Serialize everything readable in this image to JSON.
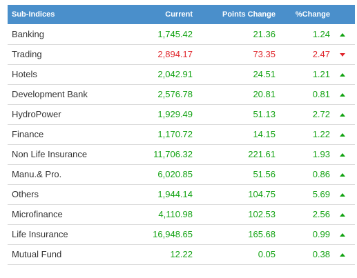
{
  "table": {
    "headers": {
      "name": "Sub-Indices",
      "current": "Current",
      "points_change": "Points Change",
      "pct_change": "%Change"
    },
    "rows": [
      {
        "name": "Banking",
        "current": "1,745.42",
        "points_change": "21.36",
        "pct_change": "1.24",
        "direction": "up"
      },
      {
        "name": "Trading",
        "current": "2,894.17",
        "points_change": "73.35",
        "pct_change": "2.47",
        "direction": "down"
      },
      {
        "name": "Hotels",
        "current": "2,042.91",
        "points_change": "24.51",
        "pct_change": "1.21",
        "direction": "up"
      },
      {
        "name": "Development Bank",
        "current": "2,576.78",
        "points_change": "20.81",
        "pct_change": "0.81",
        "direction": "up"
      },
      {
        "name": "HydroPower",
        "current": "1,929.49",
        "points_change": "51.13",
        "pct_change": "2.72",
        "direction": "up"
      },
      {
        "name": "Finance",
        "current": "1,170.72",
        "points_change": "14.15",
        "pct_change": "1.22",
        "direction": "up"
      },
      {
        "name": "Non Life Insurance",
        "current": "11,706.32",
        "points_change": "221.61",
        "pct_change": "1.93",
        "direction": "up"
      },
      {
        "name": "Manu.& Pro.",
        "current": "6,020.85",
        "points_change": "51.56",
        "pct_change": "0.86",
        "direction": "up"
      },
      {
        "name": "Others",
        "current": "1,944.14",
        "points_change": "104.75",
        "pct_change": "5.69",
        "direction": "up"
      },
      {
        "name": "Microfinance",
        "current": "4,110.98",
        "points_change": "102.53",
        "pct_change": "2.56",
        "direction": "up"
      },
      {
        "name": "Life Insurance",
        "current": "16,948.65",
        "points_change": "165.68",
        "pct_change": "0.99",
        "direction": "up"
      },
      {
        "name": "Mutual Fund",
        "current": "12.22",
        "points_change": "0.05",
        "pct_change": "0.38",
        "direction": "up"
      }
    ]
  },
  "colors": {
    "header_bg": "#4a8fcb",
    "up": "#13a313",
    "down": "#e0282e"
  }
}
